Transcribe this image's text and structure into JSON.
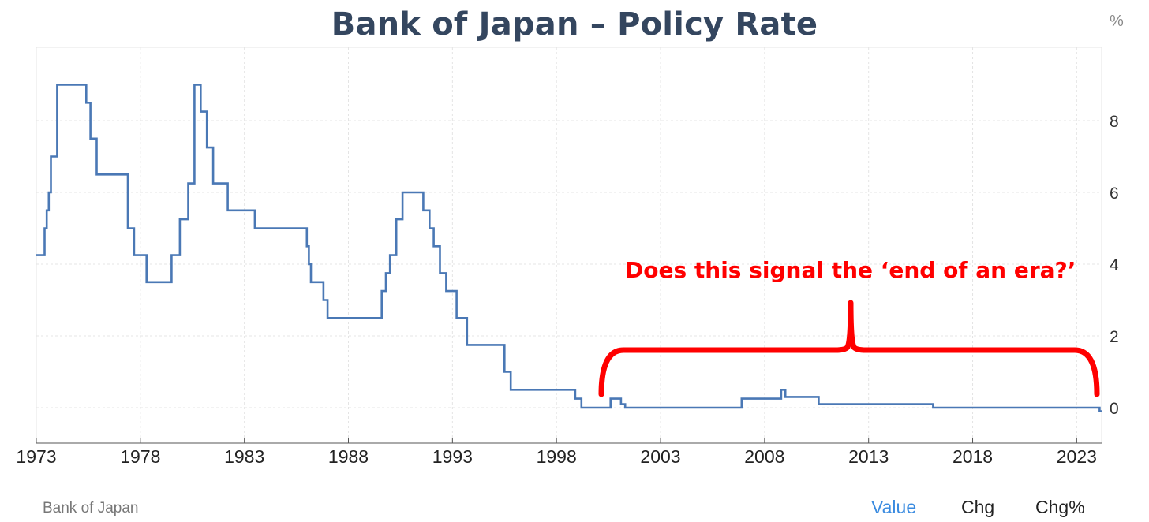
{
  "chart_data": {
    "type": "line",
    "title": "Bank of Japan – Policy Rate",
    "unit": "%",
    "xlim": [
      1973,
      2024.2
    ],
    "ylim": [
      -0.5,
      10
    ],
    "grid": true,
    "x_ticks": [
      1973,
      1978,
      1983,
      1988,
      1993,
      1998,
      2003,
      2008,
      2013,
      2018,
      2023
    ],
    "y_ticks": [
      0,
      2,
      4,
      6,
      8
    ],
    "series": [
      {
        "color": "#4a78b5",
        "x": [
          1973.0,
          1973.4,
          1973.5,
          1973.6,
          1973.7,
          1973.9,
          1974.0,
          1974.3,
          1975.4,
          1975.6,
          1975.9,
          1976.0,
          1977.4,
          1977.7,
          1978.0,
          1978.3,
          1979.4,
          1979.5,
          1979.7,
          1979.9,
          1980.1,
          1980.3,
          1980.6,
          1980.9,
          1981.2,
          1981.5,
          1982.2,
          1982.5,
          1983.5,
          1983.8,
          1986.0,
          1986.1,
          1986.2,
          1986.4,
          1986.8,
          1987.0,
          1987.2,
          1989.3,
          1989.6,
          1989.8,
          1990.0,
          1990.3,
          1990.6,
          1991.3,
          1991.6,
          1991.9,
          1992.1,
          1992.4,
          1992.7,
          1993.0,
          1993.2,
          1993.7,
          1995.2,
          1995.5,
          1995.8,
          1998.6,
          1998.9,
          1999.2,
          2000.6,
          2001.1,
          2001.3,
          2006.4,
          2006.9,
          2008.8,
          2009.0,
          2010.6,
          2016.1,
          2024.1,
          2024.2
        ],
        "y": [
          4.25,
          5.0,
          5.5,
          6.0,
          7.0,
          7.0,
          9.0,
          9.0,
          8.5,
          7.5,
          6.5,
          6.5,
          5.0,
          4.25,
          4.25,
          3.5,
          3.5,
          4.25,
          4.25,
          5.25,
          5.25,
          6.25,
          9.0,
          8.25,
          7.25,
          6.25,
          5.5,
          5.5,
          5.0,
          5.0,
          4.5,
          4.0,
          3.5,
          3.5,
          3.0,
          2.5,
          2.5,
          2.5,
          3.25,
          3.75,
          4.25,
          5.25,
          6.0,
          6.0,
          5.5,
          5.0,
          4.5,
          3.75,
          3.25,
          3.25,
          2.5,
          1.75,
          1.75,
          1.0,
          0.5,
          0.5,
          0.25,
          0.0,
          0.25,
          0.1,
          0.0,
          0.0,
          0.25,
          0.5,
          0.3,
          0.1,
          0.0,
          -0.1,
          -0.1
        ]
      }
    ]
  },
  "annotation": {
    "text": "Does this signal the ‘end of an era?’",
    "color": "#ff0000"
  },
  "footer": {
    "source": "Bank of Japan",
    "tabs": {
      "value": "Value",
      "chg": "Chg",
      "chg_pct": "Chg%"
    }
  }
}
